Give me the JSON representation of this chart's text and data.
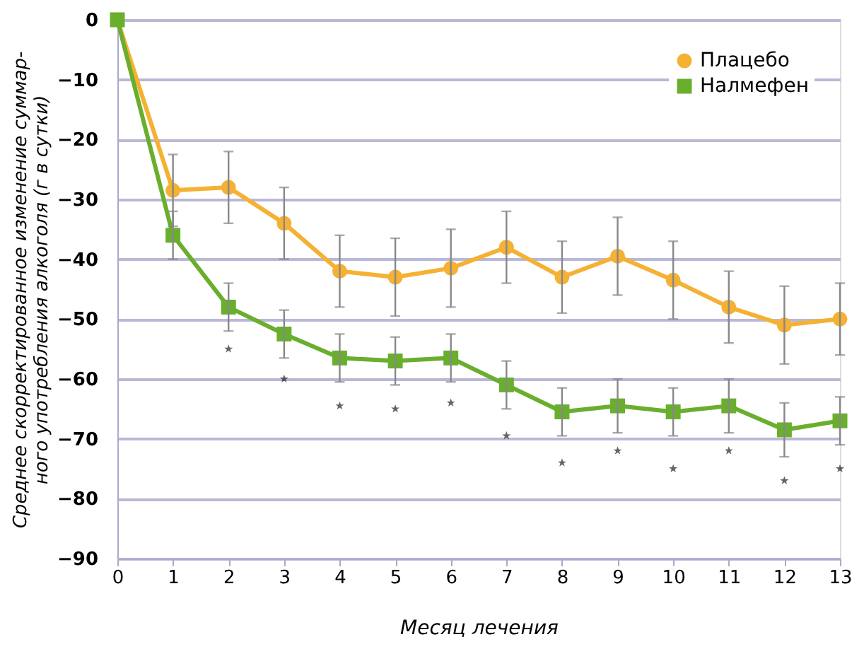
{
  "chart_data": {
    "type": "line",
    "xlabel": "Месяц лечения",
    "ylabel": "Среднее скорректированное изменение суммар-\nного употребления алкоголя (г в сутки)",
    "x": [
      0,
      1,
      2,
      3,
      4,
      5,
      6,
      7,
      8,
      9,
      10,
      11,
      12,
      13
    ],
    "series": [
      {
        "name": "Плацебо",
        "color": "#f5b133",
        "marker": "circle",
        "values": [
          0,
          -28.5,
          -28,
          -34,
          -42,
          -43,
          -41.5,
          -38,
          -43,
          -39.5,
          -43.5,
          -48,
          -51,
          -50
        ],
        "errors": [
          null,
          6,
          6,
          6,
          6,
          6.5,
          6.5,
          6,
          6,
          6.5,
          6.5,
          6,
          6.5,
          6
        ]
      },
      {
        "name": "Налмефен",
        "color": "#6aae2e",
        "marker": "square",
        "values": [
          0,
          -36,
          -48,
          -52.5,
          -56.5,
          -57,
          -56.5,
          -61,
          -65.5,
          -64.5,
          -65.5,
          -64.5,
          -68.5,
          -67
        ],
        "errors": [
          null,
          4,
          4,
          4,
          4,
          4,
          4,
          4,
          4,
          4.5,
          4,
          4.5,
          4.5,
          4
        ]
      },
      {
        "type": "scatter",
        "color": "#222222",
        "marker": "star",
        "x": [
          2,
          3,
          4,
          5,
          6,
          7,
          8,
          9,
          10,
          11,
          12,
          13
        ],
        "values": [
          -55,
          -60,
          -64.5,
          -65,
          -64,
          -69.5,
          -74,
          -72,
          -75,
          -72,
          -77,
          -75
        ]
      }
    ],
    "xlim": [
      0,
      13
    ],
    "xticks": [
      0,
      1,
      2,
      3,
      4,
      5,
      6,
      7,
      8,
      9,
      10,
      11,
      12,
      13
    ],
    "ylim": [
      -90,
      0
    ],
    "yticks": [
      -90,
      -80,
      -70,
      -60,
      -50,
      -40,
      -30,
      -20,
      -10,
      0
    ],
    "grid": "y",
    "legend": "top right",
    "line_style": "solid"
  }
}
